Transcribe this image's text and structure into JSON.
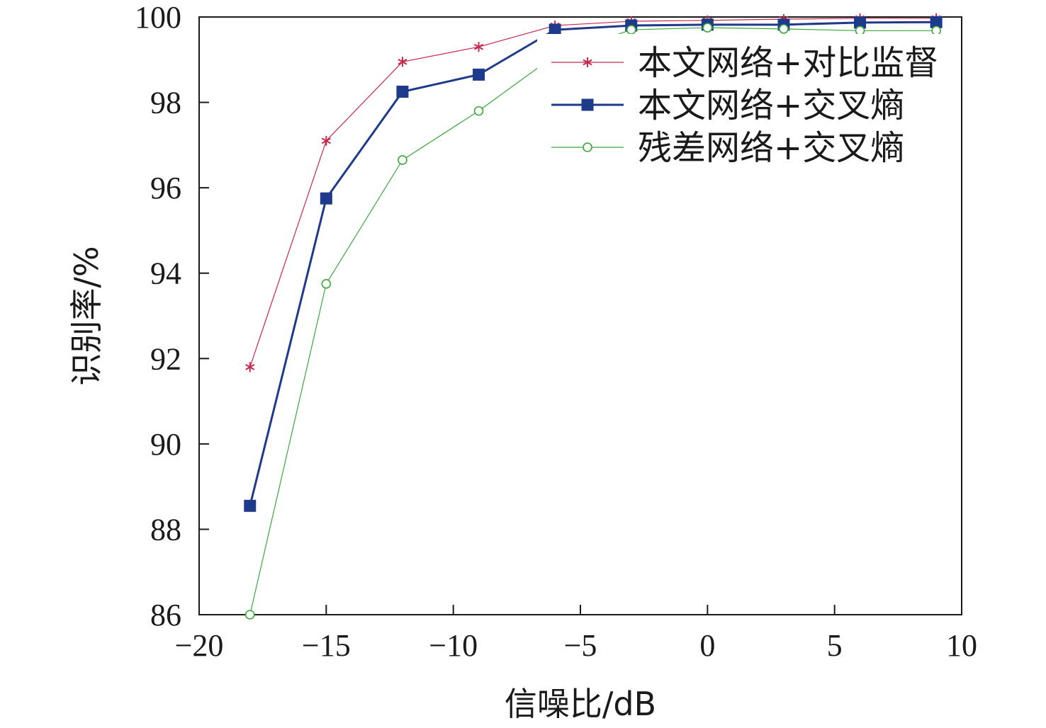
{
  "chart_data": {
    "type": "line",
    "xlabel": "信噪比/dB",
    "ylabel": "识别率/%",
    "xlim": [
      -20,
      10
    ],
    "ylim": [
      86,
      100
    ],
    "xticks": [
      -20,
      -15,
      -10,
      -5,
      0,
      5,
      10
    ],
    "yticks": [
      86,
      88,
      90,
      92,
      94,
      96,
      98,
      100
    ],
    "xtick_labels": [
      "−20",
      "−15",
      "−10",
      "−5",
      "0",
      "5",
      "10"
    ],
    "ytick_labels": [
      "86",
      "88",
      "90",
      "92",
      "94",
      "96",
      "98",
      "100"
    ],
    "grid": false,
    "legend_position": "top-right",
    "x": [
      -18,
      -15,
      -12,
      -9,
      -6,
      -3,
      0,
      3,
      6,
      9
    ],
    "series": [
      {
        "name": "本文网络+对比监督",
        "values": [
          91.8,
          97.1,
          98.95,
          99.3,
          99.8,
          99.9,
          99.92,
          99.95,
          99.97,
          99.97
        ],
        "color": "#c8284b",
        "marker": "asterisk"
      },
      {
        "name": "本文网络+交叉熵",
        "values": [
          88.55,
          95.75,
          98.25,
          98.65,
          99.7,
          99.8,
          99.82,
          99.82,
          99.87,
          99.88
        ],
        "color": "#1e3a8a",
        "marker": "square"
      },
      {
        "name": "残差网络+交叉熵",
        "values": [
          86.0,
          93.75,
          96.65,
          97.8,
          99.1,
          99.7,
          99.75,
          99.72,
          99.68,
          99.68
        ],
        "color": "#3aa83a",
        "marker": "circle"
      }
    ]
  }
}
